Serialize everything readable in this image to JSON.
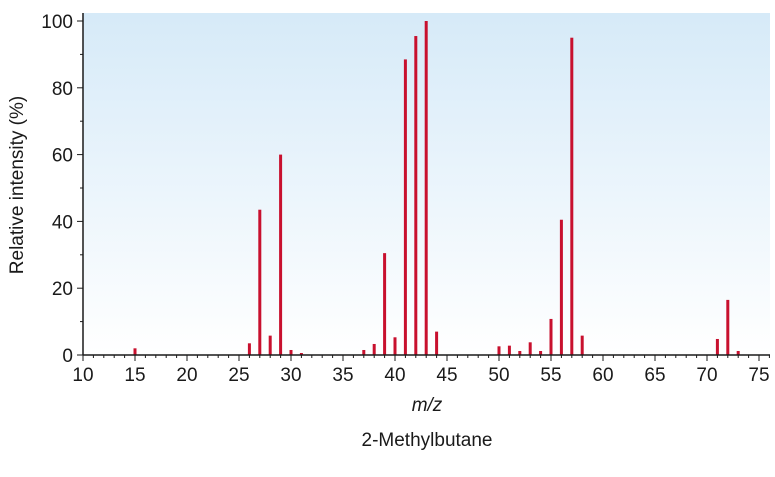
{
  "chart_data": {
    "type": "bar",
    "title": "",
    "caption": "2-Methylbutane",
    "xlabel": "m/z",
    "ylabel": "Relative intensity (%)",
    "xlim": [
      10,
      76
    ],
    "ylim": [
      0,
      100
    ],
    "x_ticks": [
      10,
      15,
      20,
      25,
      30,
      35,
      40,
      45,
      50,
      55,
      60,
      65,
      70,
      75
    ],
    "y_ticks": [
      0,
      20,
      40,
      60,
      80,
      100
    ],
    "grid": false,
    "colors": {
      "bar": "#c8102e",
      "background_top": "#d6eaf8",
      "background_bottom": "#ffffff",
      "axis": "#1a1a1a"
    },
    "x": [
      15,
      26,
      27,
      28,
      29,
      30,
      31,
      37,
      38,
      39,
      40,
      41,
      42,
      43,
      44,
      50,
      51,
      52,
      53,
      54,
      55,
      56,
      57,
      58,
      71,
      72,
      73
    ],
    "values": [
      2,
      3.5,
      43.5,
      5.8,
      60,
      1.5,
      0.6,
      1.5,
      3.3,
      30.5,
      5.3,
      88.5,
      95.5,
      100,
      7,
      2.6,
      2.8,
      1.2,
      3.8,
      1.2,
      10.8,
      40.5,
      95,
      5.8,
      4.8,
      16.5,
      1.2
    ]
  }
}
